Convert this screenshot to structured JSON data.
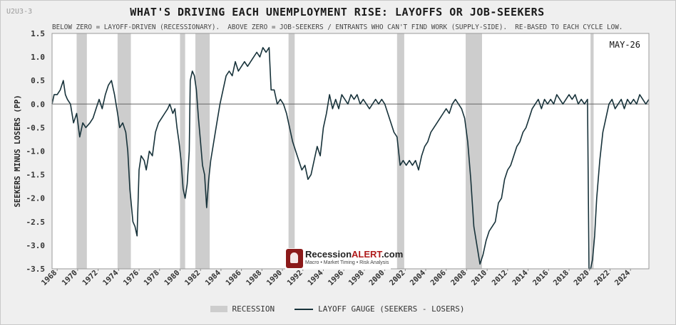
{
  "header": {
    "tag": "U2U3-3",
    "title": "WHAT'S DRIVING EACH UNEMPLOYMENT RISE: LAYOFFS OR JOB-SEEKERS",
    "subtitle": "BELOW ZERO = LAYOFF-DRIVEN (RECESSIONARY).  ABOVE ZERO = JOB-SEEKERS / ENTRANTS WHO CAN'T FIND WORK (SUPPLY-SIDE).  RE-BASED TO EACH CYCLE LOW."
  },
  "watermark": {
    "brand_main": "Recession",
    "brand_accent": "ALERT",
    "brand_suffix": ".com",
    "tagline": "Macro • Market Timing • Risk Analysis"
  },
  "legend": {
    "recession_label": "RECESSION",
    "line_label": "LAYOFF GAUGE (SEEKERS - LOSERS)"
  },
  "colors": {
    "line": "#17323a",
    "recession": "#cdcdcd",
    "plot_bg": "#ffffff",
    "page_bg": "#efefef"
  },
  "chart_data": {
    "type": "line",
    "ylabel": "SEEKERS MINUS LOSERS (PP)",
    "xlabel": "",
    "date_label": "MAY-26",
    "ylim": [
      -3.5,
      1.5
    ],
    "xlim": [
      1967.5,
      2025.8
    ],
    "yticks": [
      1.5,
      1.0,
      0.5,
      0.0,
      -0.5,
      -1.0,
      -1.5,
      -2.0,
      -2.5,
      -3.0,
      -3.5
    ],
    "xticks": [
      1968,
      1970,
      1972,
      1974,
      1976,
      1978,
      1980,
      1982,
      1984,
      1986,
      1988,
      1990,
      1992,
      1994,
      1996,
      1998,
      2000,
      2002,
      2004,
      2006,
      2008,
      2010,
      2012,
      2014,
      2016,
      2018,
      2020,
      2022,
      2024
    ],
    "zero_line": true,
    "recessions": [
      [
        1969.9,
        1970.9
      ],
      [
        1973.9,
        1975.2
      ],
      [
        1980.0,
        1980.5
      ],
      [
        1981.5,
        1982.9
      ],
      [
        1990.6,
        1991.2
      ],
      [
        2001.2,
        2001.9
      ],
      [
        2007.9,
        2009.5
      ],
      [
        2020.1,
        2020.4
      ]
    ],
    "series": [
      {
        "values": [
          [
            1967.5,
            0.0
          ],
          [
            1967.7,
            0.2
          ],
          [
            1968.0,
            0.2
          ],
          [
            1968.3,
            0.3
          ],
          [
            1968.6,
            0.5
          ],
          [
            1968.8,
            0.2
          ],
          [
            1969.0,
            0.1
          ],
          [
            1969.3,
            0.0
          ],
          [
            1969.6,
            -0.4
          ],
          [
            1969.9,
            -0.2
          ],
          [
            1970.2,
            -0.7
          ],
          [
            1970.5,
            -0.4
          ],
          [
            1970.8,
            -0.5
          ],
          [
            1971.2,
            -0.4
          ],
          [
            1971.5,
            -0.3
          ],
          [
            1971.8,
            -0.1
          ],
          [
            1972.1,
            0.1
          ],
          [
            1972.4,
            -0.1
          ],
          [
            1972.7,
            0.2
          ],
          [
            1973.0,
            0.4
          ],
          [
            1973.3,
            0.5
          ],
          [
            1973.6,
            0.2
          ],
          [
            1973.9,
            -0.2
          ],
          [
            1974.1,
            -0.5
          ],
          [
            1974.4,
            -0.4
          ],
          [
            1974.7,
            -0.6
          ],
          [
            1974.9,
            -1.0
          ],
          [
            1975.1,
            -1.8
          ],
          [
            1975.4,
            -2.5
          ],
          [
            1975.6,
            -2.6
          ],
          [
            1975.8,
            -2.8
          ],
          [
            1976.0,
            -1.4
          ],
          [
            1976.2,
            -1.1
          ],
          [
            1976.5,
            -1.2
          ],
          [
            1976.7,
            -1.4
          ],
          [
            1977.0,
            -1.0
          ],
          [
            1977.3,
            -1.1
          ],
          [
            1977.6,
            -0.6
          ],
          [
            1977.9,
            -0.4
          ],
          [
            1978.2,
            -0.3
          ],
          [
            1978.5,
            -0.2
          ],
          [
            1978.8,
            -0.1
          ],
          [
            1979.0,
            0.0
          ],
          [
            1979.3,
            -0.2
          ],
          [
            1979.5,
            -0.1
          ],
          [
            1979.7,
            -0.5
          ],
          [
            1979.9,
            -0.8
          ],
          [
            1980.1,
            -1.2
          ],
          [
            1980.3,
            -1.8
          ],
          [
            1980.5,
            -2.0
          ],
          [
            1980.7,
            -1.7
          ],
          [
            1980.9,
            -1.0
          ],
          [
            1981.0,
            0.5
          ],
          [
            1981.2,
            0.7
          ],
          [
            1981.4,
            0.6
          ],
          [
            1981.6,
            0.3
          ],
          [
            1981.8,
            -0.3
          ],
          [
            1982.0,
            -0.8
          ],
          [
            1982.2,
            -1.3
          ],
          [
            1982.4,
            -1.5
          ],
          [
            1982.6,
            -2.2
          ],
          [
            1982.8,
            -1.6
          ],
          [
            1983.0,
            -1.2
          ],
          [
            1983.3,
            -0.8
          ],
          [
            1983.6,
            -0.4
          ],
          [
            1983.9,
            0.0
          ],
          [
            1984.2,
            0.3
          ],
          [
            1984.5,
            0.6
          ],
          [
            1984.8,
            0.7
          ],
          [
            1985.1,
            0.6
          ],
          [
            1985.4,
            0.9
          ],
          [
            1985.7,
            0.7
          ],
          [
            1986.0,
            0.8
          ],
          [
            1986.3,
            0.9
          ],
          [
            1986.6,
            0.8
          ],
          [
            1986.9,
            0.9
          ],
          [
            1987.2,
            1.0
          ],
          [
            1987.5,
            1.1
          ],
          [
            1987.8,
            1.0
          ],
          [
            1988.1,
            1.2
          ],
          [
            1988.4,
            1.1
          ],
          [
            1988.7,
            1.2
          ],
          [
            1988.9,
            0.3
          ],
          [
            1989.2,
            0.3
          ],
          [
            1989.5,
            0.0
          ],
          [
            1989.8,
            0.1
          ],
          [
            1990.1,
            0.0
          ],
          [
            1990.4,
            -0.2
          ],
          [
            1990.7,
            -0.5
          ],
          [
            1991.0,
            -0.8
          ],
          [
            1991.3,
            -1.0
          ],
          [
            1991.6,
            -1.2
          ],
          [
            1991.9,
            -1.4
          ],
          [
            1992.2,
            -1.3
          ],
          [
            1992.5,
            -1.6
          ],
          [
            1992.8,
            -1.5
          ],
          [
            1993.1,
            -1.2
          ],
          [
            1993.4,
            -0.9
          ],
          [
            1993.7,
            -1.1
          ],
          [
            1994.0,
            -0.5
          ],
          [
            1994.3,
            -0.2
          ],
          [
            1994.6,
            0.2
          ],
          [
            1994.9,
            -0.1
          ],
          [
            1995.2,
            0.1
          ],
          [
            1995.5,
            -0.1
          ],
          [
            1995.8,
            0.2
          ],
          [
            1996.1,
            0.1
          ],
          [
            1996.4,
            0.0
          ],
          [
            1996.7,
            0.2
          ],
          [
            1997.0,
            0.1
          ],
          [
            1997.3,
            0.2
          ],
          [
            1997.6,
            0.0
          ],
          [
            1997.9,
            0.1
          ],
          [
            1998.2,
            0.0
          ],
          [
            1998.5,
            -0.1
          ],
          [
            1998.8,
            0.0
          ],
          [
            1999.1,
            0.1
          ],
          [
            1999.4,
            0.0
          ],
          [
            1999.7,
            0.1
          ],
          [
            2000.0,
            0.0
          ],
          [
            2000.3,
            -0.2
          ],
          [
            2000.6,
            -0.4
          ],
          [
            2000.9,
            -0.6
          ],
          [
            2001.2,
            -0.7
          ],
          [
            2001.5,
            -1.3
          ],
          [
            2001.8,
            -1.2
          ],
          [
            2002.1,
            -1.3
          ],
          [
            2002.4,
            -1.2
          ],
          [
            2002.7,
            -1.3
          ],
          [
            2003.0,
            -1.2
          ],
          [
            2003.3,
            -1.4
          ],
          [
            2003.6,
            -1.1
          ],
          [
            2003.9,
            -0.9
          ],
          [
            2004.2,
            -0.8
          ],
          [
            2004.5,
            -0.6
          ],
          [
            2004.8,
            -0.5
          ],
          [
            2005.1,
            -0.4
          ],
          [
            2005.4,
            -0.3
          ],
          [
            2005.7,
            -0.2
          ],
          [
            2006.0,
            -0.1
          ],
          [
            2006.3,
            -0.2
          ],
          [
            2006.6,
            0.0
          ],
          [
            2006.9,
            0.1
          ],
          [
            2007.2,
            0.0
          ],
          [
            2007.5,
            -0.1
          ],
          [
            2007.8,
            -0.3
          ],
          [
            2008.1,
            -0.8
          ],
          [
            2008.4,
            -1.6
          ],
          [
            2008.7,
            -2.6
          ],
          [
            2009.0,
            -3.0
          ],
          [
            2009.3,
            -3.4
          ],
          [
            2009.6,
            -3.2
          ],
          [
            2009.9,
            -2.9
          ],
          [
            2010.2,
            -2.7
          ],
          [
            2010.5,
            -2.6
          ],
          [
            2010.8,
            -2.5
          ],
          [
            2011.1,
            -2.1
          ],
          [
            2011.4,
            -2.0
          ],
          [
            2011.7,
            -1.6
          ],
          [
            2012.0,
            -1.4
          ],
          [
            2012.3,
            -1.3
          ],
          [
            2012.6,
            -1.1
          ],
          [
            2012.9,
            -0.9
          ],
          [
            2013.2,
            -0.8
          ],
          [
            2013.5,
            -0.6
          ],
          [
            2013.8,
            -0.5
          ],
          [
            2014.1,
            -0.3
          ],
          [
            2014.4,
            -0.1
          ],
          [
            2014.7,
            0.0
          ],
          [
            2015.0,
            0.1
          ],
          [
            2015.3,
            -0.1
          ],
          [
            2015.6,
            0.1
          ],
          [
            2015.9,
            0.0
          ],
          [
            2016.2,
            0.1
          ],
          [
            2016.5,
            0.0
          ],
          [
            2016.8,
            0.2
          ],
          [
            2017.1,
            0.1
          ],
          [
            2017.4,
            0.0
          ],
          [
            2017.7,
            0.1
          ],
          [
            2018.0,
            0.2
          ],
          [
            2018.3,
            0.1
          ],
          [
            2018.6,
            0.2
          ],
          [
            2018.9,
            0.0
          ],
          [
            2019.2,
            0.1
          ],
          [
            2019.5,
            0.0
          ],
          [
            2019.8,
            0.1
          ],
          [
            2019.95,
            -3.5
          ],
          [
            2020.1,
            -3.5
          ],
          [
            2020.3,
            -3.3
          ],
          [
            2020.5,
            -2.8
          ],
          [
            2020.7,
            -2.0
          ],
          [
            2021.0,
            -1.2
          ],
          [
            2021.3,
            -0.6
          ],
          [
            2021.6,
            -0.3
          ],
          [
            2021.9,
            0.0
          ],
          [
            2022.2,
            0.1
          ],
          [
            2022.5,
            -0.1
          ],
          [
            2022.8,
            0.0
          ],
          [
            2023.1,
            0.1
          ],
          [
            2023.4,
            -0.1
          ],
          [
            2023.7,
            0.1
          ],
          [
            2024.0,
            0.0
          ],
          [
            2024.3,
            0.1
          ],
          [
            2024.6,
            0.0
          ],
          [
            2024.9,
            0.2
          ],
          [
            2025.2,
            0.1
          ],
          [
            2025.5,
            0.0
          ],
          [
            2025.8,
            0.1
          ]
        ]
      }
    ]
  }
}
